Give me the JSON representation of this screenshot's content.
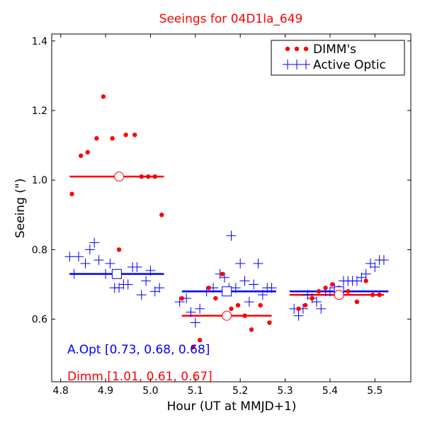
{
  "chart_data": {
    "type": "scatter",
    "title": "Seeings for 04D1la_649",
    "xlabel": "Hour (UT at MMJD+1)",
    "ylabel": "Seeing (\")",
    "xlim": [
      4.78,
      5.58
    ],
    "ylim": [
      0.42,
      1.42
    ],
    "xticks": [
      "4.8",
      "4.9",
      "5.0",
      "5.1",
      "5.2",
      "5.3",
      "5.4",
      "5.5"
    ],
    "yticks": [
      "0.6",
      "0.8",
      "1.0",
      "1.2",
      "1.4"
    ],
    "legend": {
      "position": "top-right",
      "entries": [
        "DIMM's",
        "Active Optic"
      ]
    },
    "colors": {
      "dimm": "#ff0000",
      "aopt": "#0000ff",
      "title": "#ff0000"
    },
    "annotations": {
      "aopt": "A.Opt [0.73, 0.68, 0.68]",
      "dimm": "Dimm [1.01, 0.61, 0.67]"
    },
    "series": [
      {
        "name": "DIMM's",
        "marker": "dot",
        "points": [
          [
            4.825,
            0.96
          ],
          [
            4.845,
            1.07
          ],
          [
            4.86,
            1.08
          ],
          [
            4.88,
            1.12
          ],
          [
            4.895,
            1.24
          ],
          [
            4.915,
            1.12
          ],
          [
            4.93,
            0.8
          ],
          [
            4.945,
            1.13
          ],
          [
            4.965,
            1.13
          ],
          [
            4.98,
            1.01
          ],
          [
            4.995,
            1.01
          ],
          [
            5.01,
            1.01
          ],
          [
            5.025,
            0.9
          ],
          [
            5.07,
            0.66
          ],
          [
            5.095,
            0.52
          ],
          [
            5.11,
            0.54
          ],
          [
            5.13,
            0.69
          ],
          [
            5.145,
            0.66
          ],
          [
            5.16,
            0.73
          ],
          [
            5.18,
            0.63
          ],
          [
            5.195,
            0.64
          ],
          [
            5.21,
            0.61
          ],
          [
            5.225,
            0.57
          ],
          [
            5.245,
            0.64
          ],
          [
            5.265,
            0.59
          ],
          [
            5.33,
            0.63
          ],
          [
            5.345,
            0.64
          ],
          [
            5.36,
            0.66
          ],
          [
            5.375,
            0.68
          ],
          [
            5.39,
            0.69
          ],
          [
            5.405,
            0.7
          ],
          [
            5.42,
            0.69
          ],
          [
            5.44,
            0.68
          ],
          [
            5.46,
            0.65
          ],
          [
            5.48,
            0.71
          ],
          [
            5.495,
            0.67
          ],
          [
            5.51,
            0.67
          ]
        ]
      },
      {
        "name": "Active Optic",
        "marker": "plus",
        "points": [
          [
            4.82,
            0.78
          ],
          [
            4.83,
            0.73
          ],
          [
            4.84,
            0.78
          ],
          [
            4.855,
            0.76
          ],
          [
            4.865,
            0.8
          ],
          [
            4.875,
            0.82
          ],
          [
            4.885,
            0.77
          ],
          [
            4.9,
            0.73
          ],
          [
            4.91,
            0.76
          ],
          [
            4.92,
            0.69
          ],
          [
            4.93,
            0.69
          ],
          [
            4.94,
            0.7
          ],
          [
            4.95,
            0.7
          ],
          [
            4.96,
            0.75
          ],
          [
            4.97,
            0.75
          ],
          [
            4.98,
            0.67
          ],
          [
            4.99,
            0.71
          ],
          [
            5.0,
            0.74
          ],
          [
            5.01,
            0.68
          ],
          [
            5.02,
            0.69
          ],
          [
            5.065,
            0.65
          ],
          [
            5.08,
            0.66
          ],
          [
            5.09,
            0.62
          ],
          [
            5.1,
            0.59
          ],
          [
            5.11,
            0.63
          ],
          [
            5.125,
            0.68
          ],
          [
            5.14,
            0.69
          ],
          [
            5.155,
            0.73
          ],
          [
            5.165,
            0.72
          ],
          [
            5.175,
            0.69
          ],
          [
            5.18,
            0.84
          ],
          [
            5.19,
            0.69
          ],
          [
            5.2,
            0.76
          ],
          [
            5.21,
            0.71
          ],
          [
            5.22,
            0.65
          ],
          [
            5.23,
            0.7
          ],
          [
            5.24,
            0.76
          ],
          [
            5.25,
            0.67
          ],
          [
            5.26,
            0.69
          ],
          [
            5.27,
            0.69
          ],
          [
            5.32,
            0.63
          ],
          [
            5.33,
            0.61
          ],
          [
            5.34,
            0.63
          ],
          [
            5.35,
            0.67
          ],
          [
            5.36,
            0.66
          ],
          [
            5.37,
            0.65
          ],
          [
            5.38,
            0.63
          ],
          [
            5.39,
            0.68
          ],
          [
            5.4,
            0.68
          ],
          [
            5.41,
            0.69
          ],
          [
            5.42,
            0.68
          ],
          [
            5.43,
            0.71
          ],
          [
            5.44,
            0.71
          ],
          [
            5.45,
            0.71
          ],
          [
            5.46,
            0.71
          ],
          [
            5.47,
            0.72
          ],
          [
            5.48,
            0.73
          ],
          [
            5.49,
            0.76
          ],
          [
            5.5,
            0.75
          ],
          [
            5.51,
            0.77
          ],
          [
            5.52,
            0.77
          ]
        ]
      }
    ],
    "segments": [
      {
        "series": "Active Optic",
        "x_start": 4.82,
        "x_end": 5.03,
        "mean": 0.73,
        "mean_x": 4.925,
        "marker": "square"
      },
      {
        "series": "Active Optic",
        "x_start": 5.07,
        "x_end": 5.28,
        "mean": 0.68,
        "mean_x": 5.17,
        "marker": "square"
      },
      {
        "series": "Active Optic",
        "x_start": 5.31,
        "x_end": 5.53,
        "mean": 0.68,
        "mean_x": 5.42,
        "marker": "square"
      },
      {
        "series": "DIMM's",
        "x_start": 4.82,
        "x_end": 5.03,
        "mean": 1.01,
        "mean_x": 4.93,
        "marker": "circle"
      },
      {
        "series": "DIMM's",
        "x_start": 5.07,
        "x_end": 5.27,
        "mean": 0.61,
        "mean_x": 5.17,
        "marker": "circle"
      },
      {
        "series": "DIMM's",
        "x_start": 5.31,
        "x_end": 5.52,
        "mean": 0.67,
        "mean_x": 5.42,
        "marker": "circle"
      }
    ]
  }
}
